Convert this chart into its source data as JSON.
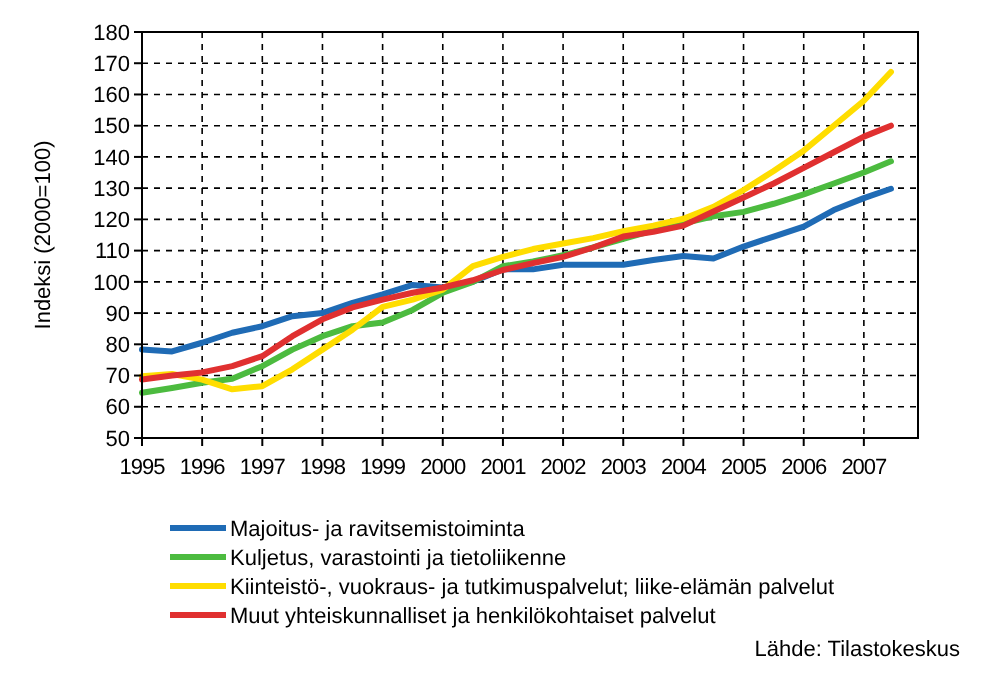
{
  "chart_data": {
    "type": "line",
    "ylabel": "Indeksi (2000=100)",
    "xlim": [
      1995,
      2007.9
    ],
    "xticks": [
      1995,
      1996,
      1997,
      1998,
      1999,
      2000,
      2001,
      2002,
      2003,
      2004,
      2005,
      2006,
      2007
    ],
    "ylim": [
      50,
      180
    ],
    "yticks": [
      50,
      60,
      70,
      80,
      90,
      100,
      110,
      120,
      130,
      140,
      150,
      160,
      170,
      180
    ],
    "grid": true,
    "legend": "bottom",
    "marker": "none",
    "line_style": "solid",
    "annotations": [
      "Lähde: Tilastokeskus"
    ],
    "x": [
      1995,
      1995.5,
      1996,
      1996.5,
      1997,
      1997.5,
      1998,
      1998.5,
      1999,
      1999.5,
      2000,
      2000.5,
      2001,
      2001.5,
      2002,
      2002.5,
      2003,
      2003.5,
      2004,
      2004.5,
      2005,
      2005.5,
      2006,
      2006.5,
      2007,
      2007.45
    ],
    "series": [
      {
        "name": "Majoitus- ja ravitsemistoiminta",
        "color": "#1f6bb5",
        "values": [
          78.3,
          77.7,
          80.5,
          83.7,
          85.8,
          89,
          90,
          93.3,
          96,
          99,
          98.2,
          100,
          104,
          104,
          105.5,
          105.5,
          105.5,
          107,
          108.3,
          107.5,
          111.3,
          114.5,
          117.7,
          123,
          126.8,
          129.8
        ]
      },
      {
        "name": "Kuljetus, varastointi ja tietoliikenne",
        "color": "#4cbb3f",
        "values": [
          64.5,
          66,
          67.7,
          69,
          73,
          78.3,
          82.6,
          85.8,
          87,
          91,
          96.5,
          100,
          105,
          106.5,
          108.5,
          111,
          113.8,
          116.5,
          118.7,
          121,
          122.4,
          125,
          128,
          131.5,
          135,
          138.6
        ]
      },
      {
        "name": "Kiinteistö-, vuokraus- ja tutkimuspalvelut; liike-elämän palvelut",
        "color": "#ffdd00",
        "values": [
          69.8,
          70.5,
          68.7,
          65.6,
          66.6,
          72,
          78.3,
          84.7,
          92,
          94.3,
          97.5,
          105,
          108,
          110.5,
          112.3,
          114,
          116.2,
          118,
          120.2,
          124,
          129.4,
          135.5,
          142,
          150,
          158,
          167.2
        ]
      },
      {
        "name": "Muut yhteiskunnalliset ja henkilökohtaiset palvelut",
        "color": "#e03030",
        "values": [
          68.7,
          70,
          71,
          73,
          76.2,
          82.6,
          88,
          91.8,
          94.3,
          96.5,
          98.2,
          100.5,
          103.8,
          106,
          108,
          111,
          114.5,
          116,
          118,
          122.5,
          127,
          131.5,
          136.5,
          141.5,
          146.5,
          150
        ]
      }
    ]
  }
}
